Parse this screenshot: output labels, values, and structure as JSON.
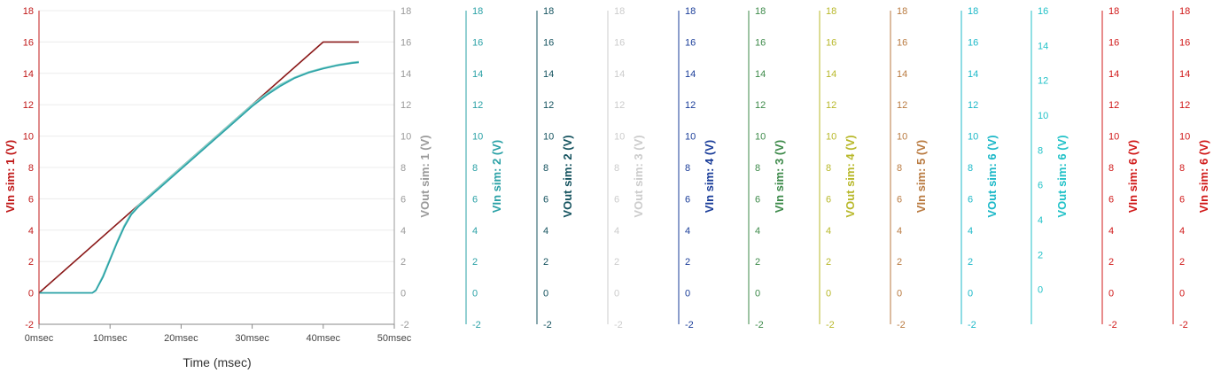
{
  "chart_data": {
    "type": "line",
    "xlabel": "Time (msec)",
    "x_ticks": [
      "0msec",
      "10msec",
      "20msec",
      "30msec",
      "40msec",
      "50msec"
    ],
    "xlim": [
      0,
      50
    ],
    "grid": true,
    "y_axes": [
      {
        "label": "VIn sim: 1 (V)",
        "color": "#c01818",
        "ylim": [
          -2,
          18
        ],
        "ticks": [
          "-2",
          "0",
          "2",
          "4",
          "6",
          "8",
          "10",
          "12",
          "14",
          "16",
          "18"
        ]
      },
      {
        "label": "VOut sim: 1 (V)",
        "color": "#9a9a9a",
        "ylim": [
          -2,
          18
        ],
        "ticks": [
          "-2",
          "0",
          "2",
          "4",
          "6",
          "8",
          "10",
          "12",
          "14",
          "16",
          "18"
        ]
      },
      {
        "label": "VIn sim: 2 (V)",
        "color": "#2aa1a6",
        "ylim": [
          -2,
          18
        ],
        "ticks": [
          "-2",
          "0",
          "2",
          "4",
          "6",
          "8",
          "10",
          "12",
          "14",
          "16",
          "18"
        ]
      },
      {
        "label": "VOut sim: 2 (V)",
        "color": "#15535f",
        "ylim": [
          -2,
          18
        ],
        "ticks": [
          "-2",
          "0",
          "2",
          "4",
          "6",
          "8",
          "10",
          "12",
          "14",
          "16",
          "18"
        ]
      },
      {
        "label": "VOut sim: 3 (V)",
        "color": "#cccccc",
        "ylim": [
          -2,
          18
        ],
        "ticks": [
          "-2",
          "0",
          "2",
          "4",
          "6",
          "8",
          "10",
          "12",
          "14",
          "16",
          "18"
        ]
      },
      {
        "label": "VIn sim: 4 (V)",
        "color": "#1a3d99",
        "ylim": [
          -2,
          18
        ],
        "ticks": [
          "-2",
          "0",
          "2",
          "4",
          "6",
          "8",
          "10",
          "12",
          "14",
          "16",
          "18"
        ]
      },
      {
        "label": "VIn sim: 3 (V)",
        "color": "#3d8a4a",
        "ylim": [
          -2,
          18
        ],
        "ticks": [
          "-2",
          "0",
          "2",
          "4",
          "6",
          "8",
          "10",
          "12",
          "14",
          "16",
          "18"
        ]
      },
      {
        "label": "VOut sim: 4 (V)",
        "color": "#b8b82a",
        "ylim": [
          -2,
          18
        ],
        "ticks": [
          "-2",
          "0",
          "2",
          "4",
          "6",
          "8",
          "10",
          "12",
          "14",
          "16",
          "18"
        ]
      },
      {
        "label": "VIn sim: 5 (V)",
        "color": "#b97a40",
        "ylim": [
          -2,
          18
        ],
        "ticks": [
          "-2",
          "0",
          "2",
          "4",
          "6",
          "8",
          "10",
          "12",
          "14",
          "16",
          "18"
        ]
      },
      {
        "label": "VOut sim: 6 (V)",
        "color": "#1cb8c8",
        "ylim": [
          -2,
          18
        ],
        "ticks": [
          "-2",
          "0",
          "2",
          "4",
          "6",
          "8",
          "10",
          "12",
          "14",
          "16",
          "18"
        ]
      },
      {
        "label": "VOut sim: 6 (V)",
        "color": "#22c2c8",
        "ylim": [
          -2,
          16
        ],
        "ticks": [
          "0",
          "2",
          "4",
          "6",
          "8",
          "10",
          "12",
          "14",
          "16"
        ]
      },
      {
        "label": "VIn sim: 6 (V)",
        "color": "#d01818",
        "ylim": [
          -2,
          18
        ],
        "ticks": [
          "-2",
          "0",
          "2",
          "4",
          "6",
          "8",
          "10",
          "12",
          "14",
          "16",
          "18"
        ]
      },
      {
        "label": "VIn sim: 6 (V)",
        "color": "#d01818",
        "ylim": [
          -2,
          18
        ],
        "ticks": [
          "-2",
          "0",
          "2",
          "4",
          "6",
          "8",
          "10",
          "12",
          "14",
          "16",
          "18"
        ]
      }
    ],
    "series": [
      {
        "color": "#8b1a1a",
        "x": [
          0,
          40,
          45
        ],
        "y": [
          0,
          16,
          16
        ]
      },
      {
        "color": "#7fd0c8",
        "x": [
          0,
          7.5,
          8,
          9,
          10,
          11,
          12,
          13,
          14,
          16,
          20,
          25,
          30,
          32,
          34,
          36,
          38,
          40,
          42,
          44,
          45
        ],
        "y": [
          0,
          0,
          0.2,
          1.1,
          2.2,
          3.3,
          4.3,
          5.1,
          5.6,
          6.4,
          8.0,
          10.0,
          12.0,
          12.7,
          13.3,
          13.75,
          14.1,
          14.35,
          14.55,
          14.7,
          14.75
        ]
      },
      {
        "color": "#2aa1a6",
        "x": [
          0,
          7.5,
          8,
          9,
          10,
          11,
          12,
          13,
          14,
          16,
          20,
          25,
          30,
          32,
          34,
          36,
          38,
          40,
          42,
          44,
          45
        ],
        "y": [
          0,
          0,
          0.15,
          1.0,
          2.1,
          3.2,
          4.2,
          5.0,
          5.5,
          6.3,
          7.9,
          9.9,
          11.9,
          12.6,
          13.2,
          13.7,
          14.05,
          14.3,
          14.5,
          14.65,
          14.7
        ]
      }
    ]
  }
}
